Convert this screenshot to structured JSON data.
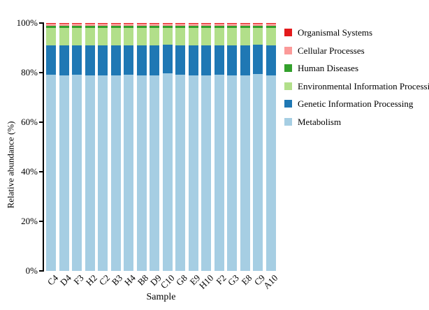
{
  "figure": {
    "background": "#ffffff",
    "text_color": "#000000"
  },
  "axes": {
    "y_label": "Relative abundance (%)",
    "x_label": "Sample",
    "y_ticks": [
      "0%",
      "20%",
      "40%",
      "60%",
      "80%",
      "100%"
    ]
  },
  "chart_data": {
    "type": "bar",
    "stacked": true,
    "normalized": "percent",
    "title": "",
    "xlabel": "Sample",
    "ylabel": "Relative abundance (%)",
    "ylim": [
      0,
      100
    ],
    "y_tick_labels": [
      "0%",
      "20%",
      "40%",
      "60%",
      "80%",
      "100%"
    ],
    "grid": false,
    "legend_position": "right-outside",
    "categories": [
      "C4",
      "D4",
      "F3",
      "H2",
      "C2",
      "B3",
      "H4",
      "B8",
      "D9",
      "C10",
      "G8",
      "E9",
      "H10",
      "F2",
      "G3",
      "E8",
      "C9",
      "A10"
    ],
    "series": [
      {
        "name": "Metabolism",
        "color": "#a6cee3",
        "values": [
          79.3,
          79.0,
          79.1,
          78.9,
          79.0,
          78.8,
          79.2,
          78.9,
          79.0,
          79.8,
          79.1,
          78.9,
          79.0,
          79.2,
          78.8,
          79.0,
          79.5,
          78.9
        ]
      },
      {
        "name": "Genetic Information Processing",
        "color": "#1f78b4",
        "values": [
          11.6,
          11.9,
          11.9,
          12.1,
          12.0,
          12.2,
          11.9,
          12.1,
          12.0,
          11.5,
          11.9,
          12.1,
          12.0,
          11.8,
          12.2,
          12.0,
          11.8,
          12.0
        ]
      },
      {
        "name": "Environmental Information Processing",
        "color": "#b2df8a",
        "values": [
          7.2,
          7.2,
          7.1,
          7.1,
          7.1,
          7.1,
          7.0,
          7.1,
          7.1,
          6.8,
          7.1,
          7.1,
          7.1,
          7.1,
          7.1,
          7.1,
          6.8,
          7.2
        ]
      },
      {
        "name": "Human Diseases",
        "color": "#33a02c",
        "values": [
          0.8,
          0.8,
          0.8,
          0.8,
          0.8,
          0.8,
          0.8,
          0.8,
          0.8,
          0.8,
          0.8,
          0.8,
          0.8,
          0.8,
          0.8,
          0.8,
          0.8,
          0.8
        ]
      },
      {
        "name": "Cellular Processes",
        "color": "#fb9a99",
        "values": [
          0.8,
          0.8,
          0.8,
          0.8,
          0.8,
          0.8,
          0.8,
          0.8,
          0.8,
          0.8,
          0.8,
          0.8,
          0.8,
          0.8,
          0.8,
          0.8,
          0.8,
          0.8
        ]
      },
      {
        "name": "Organismal Systems",
        "color": "#e31a1c",
        "values": [
          0.3,
          0.3,
          0.3,
          0.3,
          0.3,
          0.3,
          0.3,
          0.3,
          0.3,
          0.3,
          0.3,
          0.3,
          0.3,
          0.3,
          0.3,
          0.3,
          0.3,
          0.3
        ]
      }
    ],
    "legend_order": [
      "Organismal Systems",
      "Cellular Processes",
      "Human Diseases",
      "Environmental Information Processing",
      "Genetic Information Processing",
      "Metabolism"
    ]
  }
}
